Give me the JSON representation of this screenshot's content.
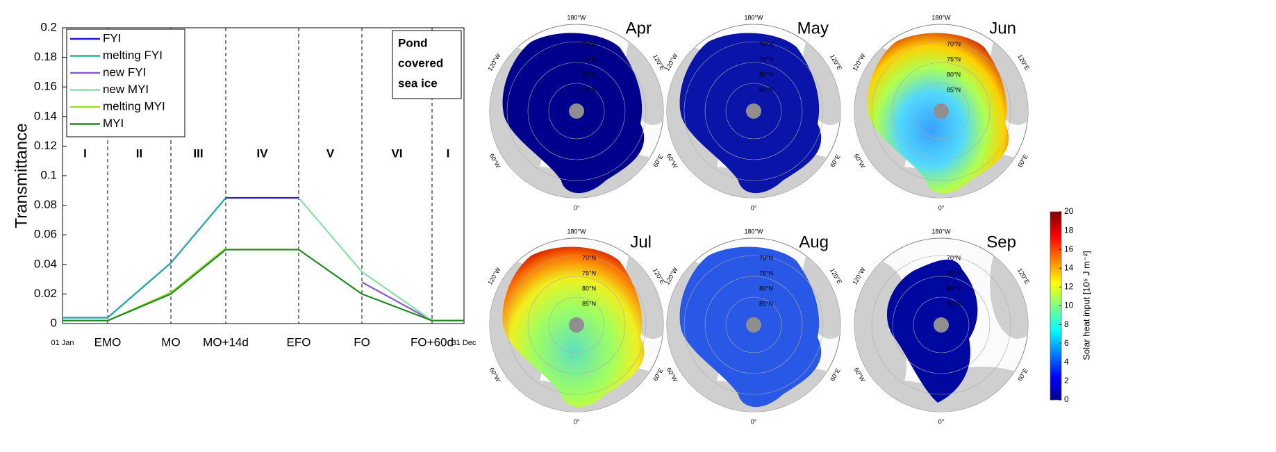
{
  "chart_data": {
    "type": "line",
    "y_label": "Transmittance",
    "categories": [
      "01 Jan",
      "EMO",
      "MO",
      "MO+14d",
      "EFO",
      "FO",
      "FO+60d",
      "31 Dec"
    ],
    "series": [
      {
        "name": "FYI",
        "color": "#1a1ad8",
        "values": [
          0.004,
          0.004,
          0.041,
          0.085,
          0.085,
          null,
          null,
          null
        ]
      },
      {
        "name": "melting FYI",
        "color": "#27b0a6",
        "values": [
          0.004,
          0.004,
          0.041,
          0.085,
          null,
          null,
          null,
          null
        ]
      },
      {
        "name": "new FYI",
        "color": "#8a5ad0",
        "values": [
          null,
          null,
          null,
          null,
          null,
          0.028,
          0.002,
          0.002
        ]
      },
      {
        "name": "new MYI",
        "color": "#86e0a6",
        "values": [
          null,
          null,
          null,
          null,
          0.085,
          0.035,
          0.002,
          0.002
        ]
      },
      {
        "name": "melting MYI",
        "color": "#98e030",
        "values": [
          0.002,
          0.002,
          0.021,
          0.051,
          null,
          null,
          null,
          null
        ]
      },
      {
        "name": "MYI",
        "color": "#238a23",
        "values": [
          0.002,
          0.002,
          0.02,
          0.05,
          0.05,
          0.02,
          0.002,
          0.002
        ]
      }
    ],
    "ylim": [
      0,
      0.2
    ],
    "yticks": [
      0,
      0.02,
      0.04,
      0.06,
      0.08,
      0.1,
      0.12,
      0.14,
      0.16,
      0.18,
      0.2
    ],
    "grid": false,
    "legend": "upper left",
    "phases": [
      "I",
      "II",
      "III",
      "IV",
      "V",
      "VI",
      "I"
    ],
    "note_lines": [
      "Pond",
      "covered",
      "sea ice"
    ]
  },
  "maps": {
    "months": [
      "Apr",
      "May",
      "Jun",
      "Jul",
      "Aug",
      "Sep"
    ],
    "lon_labels": [
      "180°W",
      "120°W",
      "60°W",
      "0°",
      "60°E",
      "120°E"
    ],
    "lat_labels": [
      "70°N",
      "75°N",
      "80°N",
      "85°N"
    ]
  },
  "colorbar": {
    "label": "Solar heat input [10⁵ J m⁻²]",
    "lim": [
      0,
      20
    ],
    "ticks": [
      0,
      2,
      4,
      6,
      8,
      10,
      12,
      14,
      16,
      18,
      20
    ]
  }
}
